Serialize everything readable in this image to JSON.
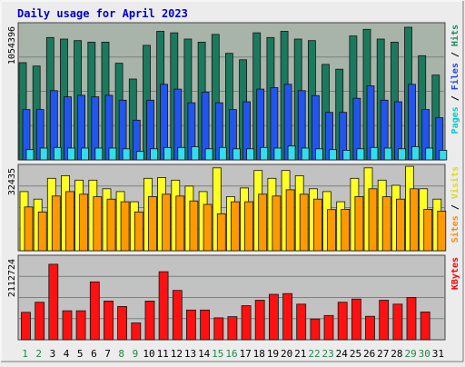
{
  "chart_data": {
    "type": "bar",
    "title": "Daily usage for April 2023",
    "categories": [
      "1",
      "2",
      "3",
      "4",
      "5",
      "6",
      "7",
      "8",
      "9",
      "10",
      "11",
      "12",
      "13",
      "14",
      "15",
      "16",
      "17",
      "18",
      "19",
      "20",
      "21",
      "22",
      "23",
      "24",
      "25",
      "26",
      "27",
      "28",
      "29",
      "30",
      "31"
    ],
    "weekend_categories": [
      "1",
      "2",
      "8",
      "9",
      "15",
      "16",
      "22",
      "23",
      "29",
      "30"
    ],
    "panels": [
      {
        "name": "pages-files-hits",
        "ymax_label": "1054396",
        "ylim": [
          0,
          1054396
        ],
        "legend": [
          "Pages",
          "Files",
          "Hits"
        ],
        "series": [
          {
            "name": "Hits",
            "color": "#1b7a5d",
            "values": [
              757000,
              731000,
              953000,
              941000,
              929000,
              917000,
              917000,
              753000,
              630000,
              892000,
              1001000,
              990000,
              941000,
              917000,
              977000,
              830000,
              780000,
              990000,
              953000,
              1001000,
              941000,
              929000,
              744000,
              706000,
              965000,
              1017000,
              941000,
              917000,
              1033000,
              812000,
              661000
            ]
          },
          {
            "name": "Files",
            "color": "#2255ee",
            "values": [
              392000,
              392000,
              539000,
              491000,
              503000,
              491000,
              503000,
              465000,
              309000,
              465000,
              589000,
              551000,
              445000,
              527000,
              445000,
              392000,
              453000,
              551000,
              563000,
              589000,
              539000,
              501000,
              370000,
              370000,
              480000,
              577000,
              465000,
              453000,
              589000,
              392000,
              328000
            ]
          },
          {
            "name": "Pages",
            "color": "#33ddee",
            "values": [
              80000,
              92000,
              97000,
              92000,
              92000,
              92000,
              92000,
              86000,
              66000,
              86000,
              97000,
              97000,
              103000,
              86000,
              97000,
              86000,
              86000,
              97000,
              92000,
              108000,
              92000,
              86000,
              80000,
              75000,
              86000,
              97000,
              92000,
              86000,
              103000,
              92000,
              75000
            ]
          }
        ]
      },
      {
        "name": "visits-sites",
        "ymax_label": "32435",
        "ylim": [
          0,
          32435
        ],
        "legend": [
          "Sites",
          "Visits"
        ],
        "series": [
          {
            "name": "Visits",
            "color": "#ffff22",
            "values": [
              22700,
              19800,
              27800,
              28800,
              27100,
              27100,
              23800,
              22700,
              18800,
              27800,
              28100,
              27100,
              24800,
              22700,
              31800,
              20800,
              24100,
              30800,
              27800,
              30800,
              28800,
              23800,
              22700,
              18800,
              27800,
              31800,
              27100,
              25100,
              32400,
              23800,
              19800
            ]
          },
          {
            "name": "Sites",
            "color": "#ff9900",
            "values": [
              16800,
              14900,
              21000,
              22700,
              21700,
              20700,
              19800,
              18800,
              14900,
              20800,
              21700,
              21000,
              19100,
              17800,
              14200,
              18800,
              18800,
              21700,
              21000,
              23400,
              21700,
              19800,
              15800,
              15900,
              20800,
              23800,
              20700,
              19800,
              23800,
              15900,
              15200
            ]
          }
        ]
      },
      {
        "name": "kbytes",
        "ymax_label": "2112724",
        "ylim": [
          0,
          2112724
        ],
        "legend": [
          "KBytes"
        ],
        "series": [
          {
            "name": "KBytes",
            "color": "#ff1111",
            "values": [
              700000,
              960000,
              1930000,
              740000,
              740000,
              1480000,
              990000,
              850000,
              430000,
              990000,
              1740000,
              1260000,
              760000,
              760000,
              560000,
              590000,
              870000,
              1010000,
              1160000,
              1180000,
              910000,
              530000,
              620000,
              960000,
              1040000,
              600000,
              1010000,
              910000,
              1080000,
              710000,
              0
            ]
          }
        ]
      }
    ]
  }
}
